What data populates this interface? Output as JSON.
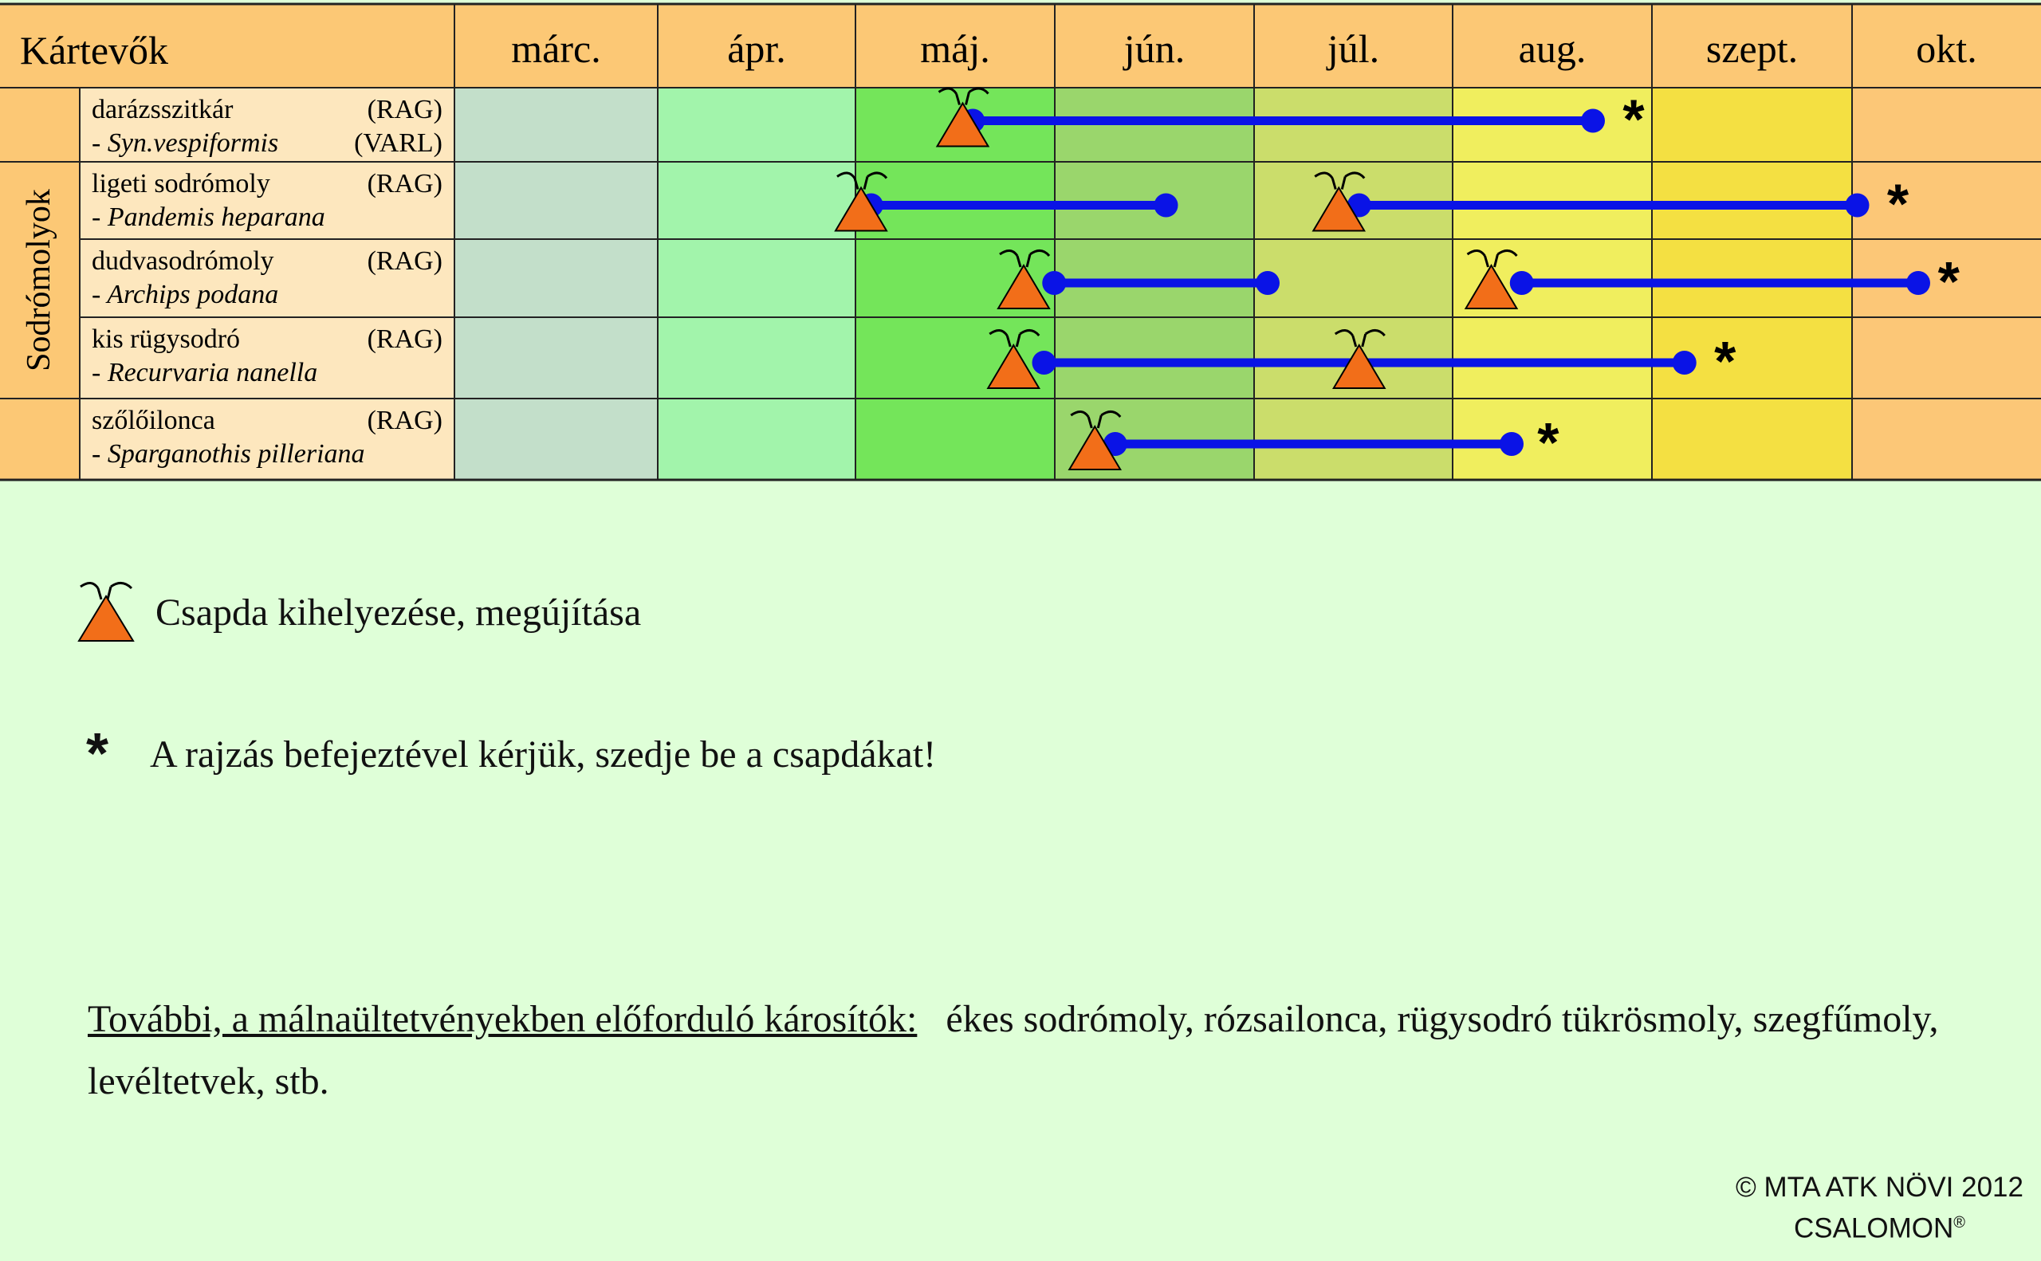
{
  "header": {
    "corner": "Kártevők",
    "months": [
      "márc.",
      "ápr.",
      "máj.",
      "jún.",
      "júl.",
      "aug.",
      "szept.",
      "okt."
    ]
  },
  "group_label": "Sodrómolyok",
  "pests": [
    {
      "name": "darázsszitkár",
      "latin": "- Syn.vespiformis",
      "lure": "(RAG)",
      "lure2": "(VARL)"
    },
    {
      "name": "ligeti  sodrómoly",
      "latin": "- Pandemis heparana",
      "lure": "(RAG)",
      "lure2": ""
    },
    {
      "name": "dudvasodrómoly",
      "latin": "- Archips podana",
      "lure": "(RAG)",
      "lure2": ""
    },
    {
      "name": "kis rügysodró",
      "latin": " - Recurvaria nanella",
      "lure": "(RAG)",
      "lure2": ""
    },
    {
      "name": "szőlőilonca",
      "latin": "- Sparganothis pilleriana",
      "lure": "(RAG)",
      "lure2": ""
    }
  ],
  "chart_data": {
    "type": "gantt",
    "month_axis": [
      "márc.",
      "ápr.",
      "máj.",
      "jún.",
      "júl.",
      "aug.",
      "szept.",
      "okt."
    ],
    "rows": [
      {
        "pest": "darázsszitkár",
        "traps": [
          2.5
        ],
        "flight": [
          [
            2.55,
            5.6
          ]
        ],
        "collect_after": 5.8
      },
      {
        "pest": "ligeti sodrómoly",
        "traps": [
          2.0,
          4.35
        ],
        "flight": [
          [
            2.05,
            3.5
          ],
          [
            4.45,
            6.9
          ]
        ],
        "collect_after": 7.1
      },
      {
        "pest": "dudvasodrómoly",
        "traps": [
          2.8,
          5.1
        ],
        "flight": [
          [
            2.95,
            4.0
          ],
          [
            5.25,
            7.2
          ]
        ],
        "collect_after": 7.35
      },
      {
        "pest": "kis rügysodró",
        "traps": [
          2.75,
          4.45
        ],
        "flight": [
          [
            2.9,
            6.05
          ]
        ],
        "collect_after": 6.25
      },
      {
        "pest": "szőlőilonca",
        "traps": [
          3.15
        ],
        "flight": [
          [
            3.25,
            5.2
          ]
        ],
        "collect_after": 5.38
      }
    ],
    "colors": {
      "line": "#0a13e6",
      "trap": "#f26e19",
      "header": "#fcc875",
      "months_fill": [
        "#c3dfca",
        "#a2f4ab",
        "#74e55a",
        "#9ad66c",
        "#cbdd6b",
        "#f0ee5e",
        "#f4e042",
        "#fcc777"
      ]
    }
  },
  "legend": {
    "trap_text": "Csapda kihelyezése, megújítása",
    "star_text": "A rajzás befejeztével kérjük, szedje be a csapdákat!",
    "star_symbol": "*"
  },
  "further": {
    "heading": "További, a málnaültetvényekben előforduló károsítók:",
    "text": "ékes sodrómoly, rózsailonca,  rügysodró tükrösmoly, szegfűmoly, levéltetvek, stb."
  },
  "copyright": {
    "line1": "© MTA ATK NÖVI 2012",
    "line2": "CSALOMON",
    "reg": "®"
  }
}
